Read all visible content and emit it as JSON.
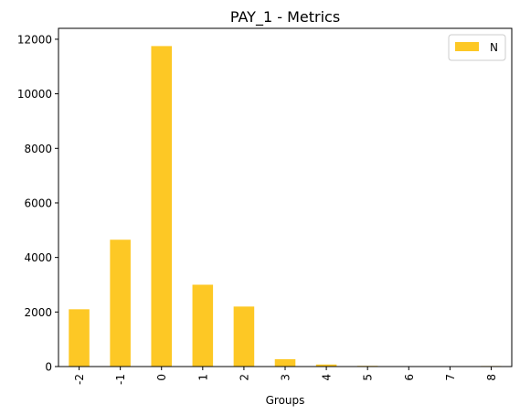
{
  "chart_data": {
    "type": "bar",
    "title": "PAY_1 - Metrics",
    "xlabel": "Groups",
    "ylabel": "",
    "categories": [
      "-2",
      "-1",
      "0",
      "1",
      "2",
      "3",
      "4",
      "5",
      "6",
      "7",
      "8"
    ],
    "series": [
      {
        "name": "N",
        "values": [
          2100,
          4650,
          11750,
          3000,
          2200,
          270,
          75,
          25,
          10,
          5,
          20
        ]
      }
    ],
    "ylim": [
      0,
      12400
    ],
    "yticks": [
      0,
      2000,
      4000,
      6000,
      8000,
      10000,
      12000
    ],
    "grid": false,
    "legend_position": "top-right",
    "bar_color": "#fdc825"
  }
}
